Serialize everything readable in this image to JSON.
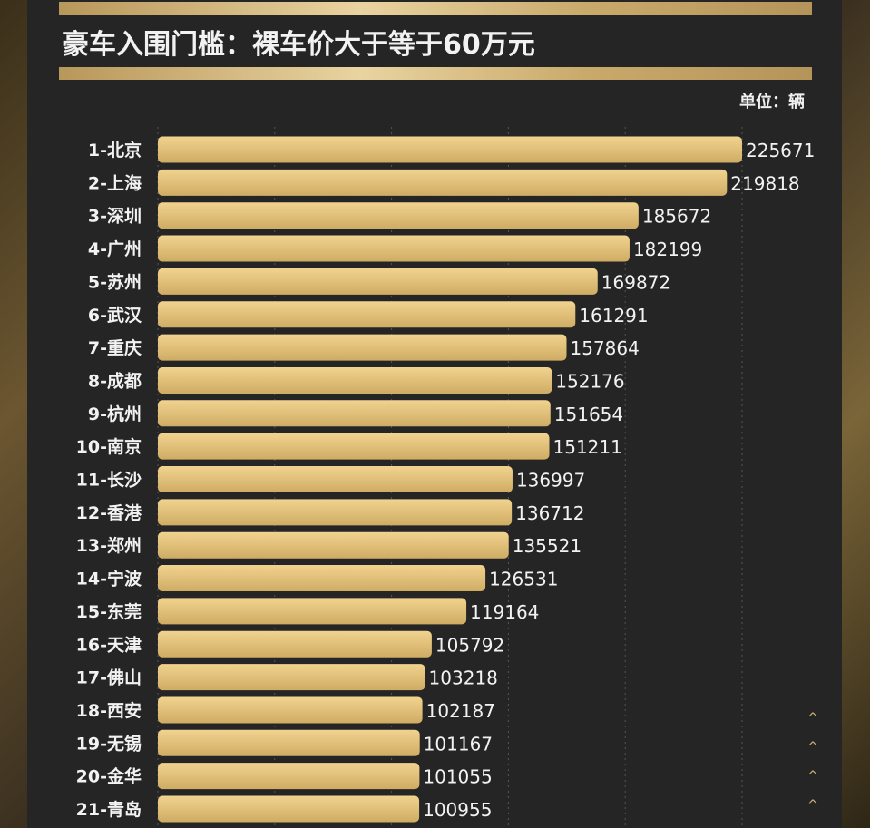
{
  "title": "豪车入围门槛：裸车价大于等于60万元",
  "unit_label": "单位：辆",
  "chart_data": {
    "type": "bar",
    "orientation": "horizontal",
    "title": "豪车入围门槛：裸车价大于等于60万元",
    "unit": "辆",
    "xlim": [
      0,
      225671
    ],
    "categories": [
      "1-北京",
      "2-上海",
      "3-深圳",
      "4-广州",
      "5-苏州",
      "6-武汉",
      "7-重庆",
      "8-成都",
      "9-杭州",
      "10-南京",
      "11-长沙",
      "12-香港",
      "13-郑州",
      "14-宁波",
      "15-东莞",
      "16-天津",
      "17-佛山",
      "18-西安",
      "19-无锡",
      "20-金华",
      "21-青岛"
    ],
    "values": [
      225671,
      219818,
      185672,
      182199,
      169872,
      161291,
      157864,
      152176,
      151654,
      151211,
      136997,
      136712,
      135521,
      126531,
      119164,
      105792,
      103218,
      102187,
      101167,
      101055,
      100955
    ],
    "data_labels": [
      "225671",
      "219818",
      "185672",
      "182199",
      "169872",
      "161291",
      "157864",
      "152176",
      "151654",
      "151211",
      "136997",
      "136712",
      "135521",
      "126531",
      "119164",
      "105792",
      "103218",
      "102187",
      "101167",
      "101055",
      "100955"
    ]
  },
  "colors": {
    "bar_top": "#f1d38f",
    "bar_bottom": "#cfac64",
    "text": "#f2f2f2",
    "gridline": "#555555"
  },
  "scroll_chevrons": [
    "^",
    "^",
    "^",
    "^"
  ]
}
